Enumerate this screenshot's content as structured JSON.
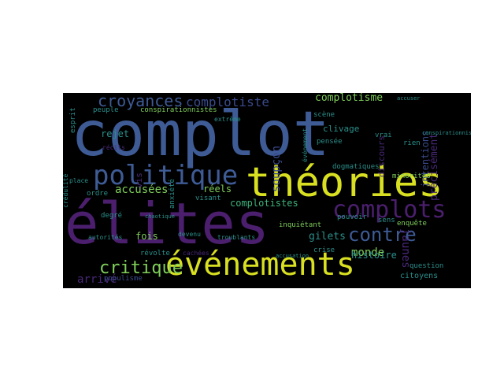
{
  "palette": {
    "background": "#000000",
    "page": "#ffffff",
    "blue": "#3e5b96",
    "purple": "#4b1f6e",
    "yellow": "#d8e021",
    "teal": "#2a8f8a",
    "green": "#3fb27a",
    "lightgreen": "#7fcf5a",
    "darkblue": "#3a4a8c",
    "violet": "#482878"
  },
  "words": [
    {
      "text": "complot",
      "color": "blue"
    },
    {
      "text": "élites",
      "color": "purple"
    },
    {
      "text": "théories",
      "color": "yellow"
    },
    {
      "text": "événements",
      "color": "yellow"
    },
    {
      "text": "politique",
      "color": "blue"
    },
    {
      "text": "complots",
      "color": "purple"
    },
    {
      "text": "contre",
      "color": "blue"
    },
    {
      "text": "critique",
      "color": "lightgreen"
    },
    {
      "text": "croyances",
      "color": "blue"
    },
    {
      "text": "complotiste",
      "color": "darkblue"
    },
    {
      "text": "complotisme",
      "color": "lightgreen"
    },
    {
      "text": "accusées",
      "color": "lightgreen"
    },
    {
      "text": "complotistes",
      "color": "green"
    },
    {
      "text": "monde",
      "color": "lightgreen"
    },
    {
      "text": "gilets",
      "color": "teal"
    },
    {
      "text": "histoire",
      "color": "teal"
    },
    {
      "text": "arrivé",
      "color": "violet"
    },
    {
      "text": "fois",
      "color": "lightgreen"
    },
    {
      "text": "réels",
      "color": "lightgreen"
    },
    {
      "text": "rejet",
      "color": "teal"
    },
    {
      "text": "soupçon",
      "color": "darkblue"
    },
    {
      "text": "clivage",
      "color": "teal"
    },
    {
      "text": "pensée",
      "color": "teal"
    },
    {
      "text": "jaunes",
      "color": "violet"
    },
    {
      "text": "citoyens",
      "color": "teal"
    },
    {
      "text": "question",
      "color": "teal"
    },
    {
      "text": "populisme",
      "color": "darkblue"
    },
    {
      "text": "révolte",
      "color": "teal"
    },
    {
      "text": "crise",
      "color": "teal"
    },
    {
      "text": "inquiétant",
      "color": "lightgreen"
    },
    {
      "text": "enquête",
      "color": "lightgreen"
    },
    {
      "text": "pouvoir",
      "color": "teal"
    },
    {
      "text": "minorités",
      "color": "lightgreen"
    },
    {
      "text": "dogmatiques",
      "color": "teal"
    },
    {
      "text": "intentions",
      "color": "darkblue"
    },
    {
      "text": "précisément",
      "color": "violet"
    },
    {
      "text": "conspirationnistes",
      "color": "lightgreen"
    },
    {
      "text": "peuple",
      "color": "teal"
    },
    {
      "text": "esprit",
      "color": "teal"
    },
    {
      "text": "scène",
      "color": "teal"
    },
    {
      "text": "événement",
      "color": "teal"
    },
    {
      "text": "vrai",
      "color": "teal"
    },
    {
      "text": "sens",
      "color": "teal"
    },
    {
      "text": "rien",
      "color": "teal"
    },
    {
      "text": "visant",
      "color": "teal"
    },
    {
      "text": "anxiété",
      "color": "teal"
    },
    {
      "text": "degré",
      "color": "teal"
    },
    {
      "text": "ordre",
      "color": "teal"
    },
    {
      "text": "place",
      "color": "teal"
    },
    {
      "text": "autorités",
      "color": "teal"
    },
    {
      "text": "chaotique",
      "color": "teal"
    },
    {
      "text": "cachées",
      "color": "violet"
    },
    {
      "text": "troublants",
      "color": "teal"
    },
    {
      "text": "devenu",
      "color": "teal"
    },
    {
      "text": "récits",
      "color": "violet"
    },
    {
      "text": "crédulité",
      "color": "teal"
    },
    {
      "text": "extrême",
      "color": "teal"
    },
    {
      "text": "accusation",
      "color": "teal"
    },
    {
      "text": "conspirationnisme",
      "color": "teal"
    },
    {
      "text": "accuser",
      "color": "teal"
    },
    {
      "text": "vis",
      "color": "violet"
    },
    {
      "text": "discours",
      "color": "violet"
    }
  ]
}
